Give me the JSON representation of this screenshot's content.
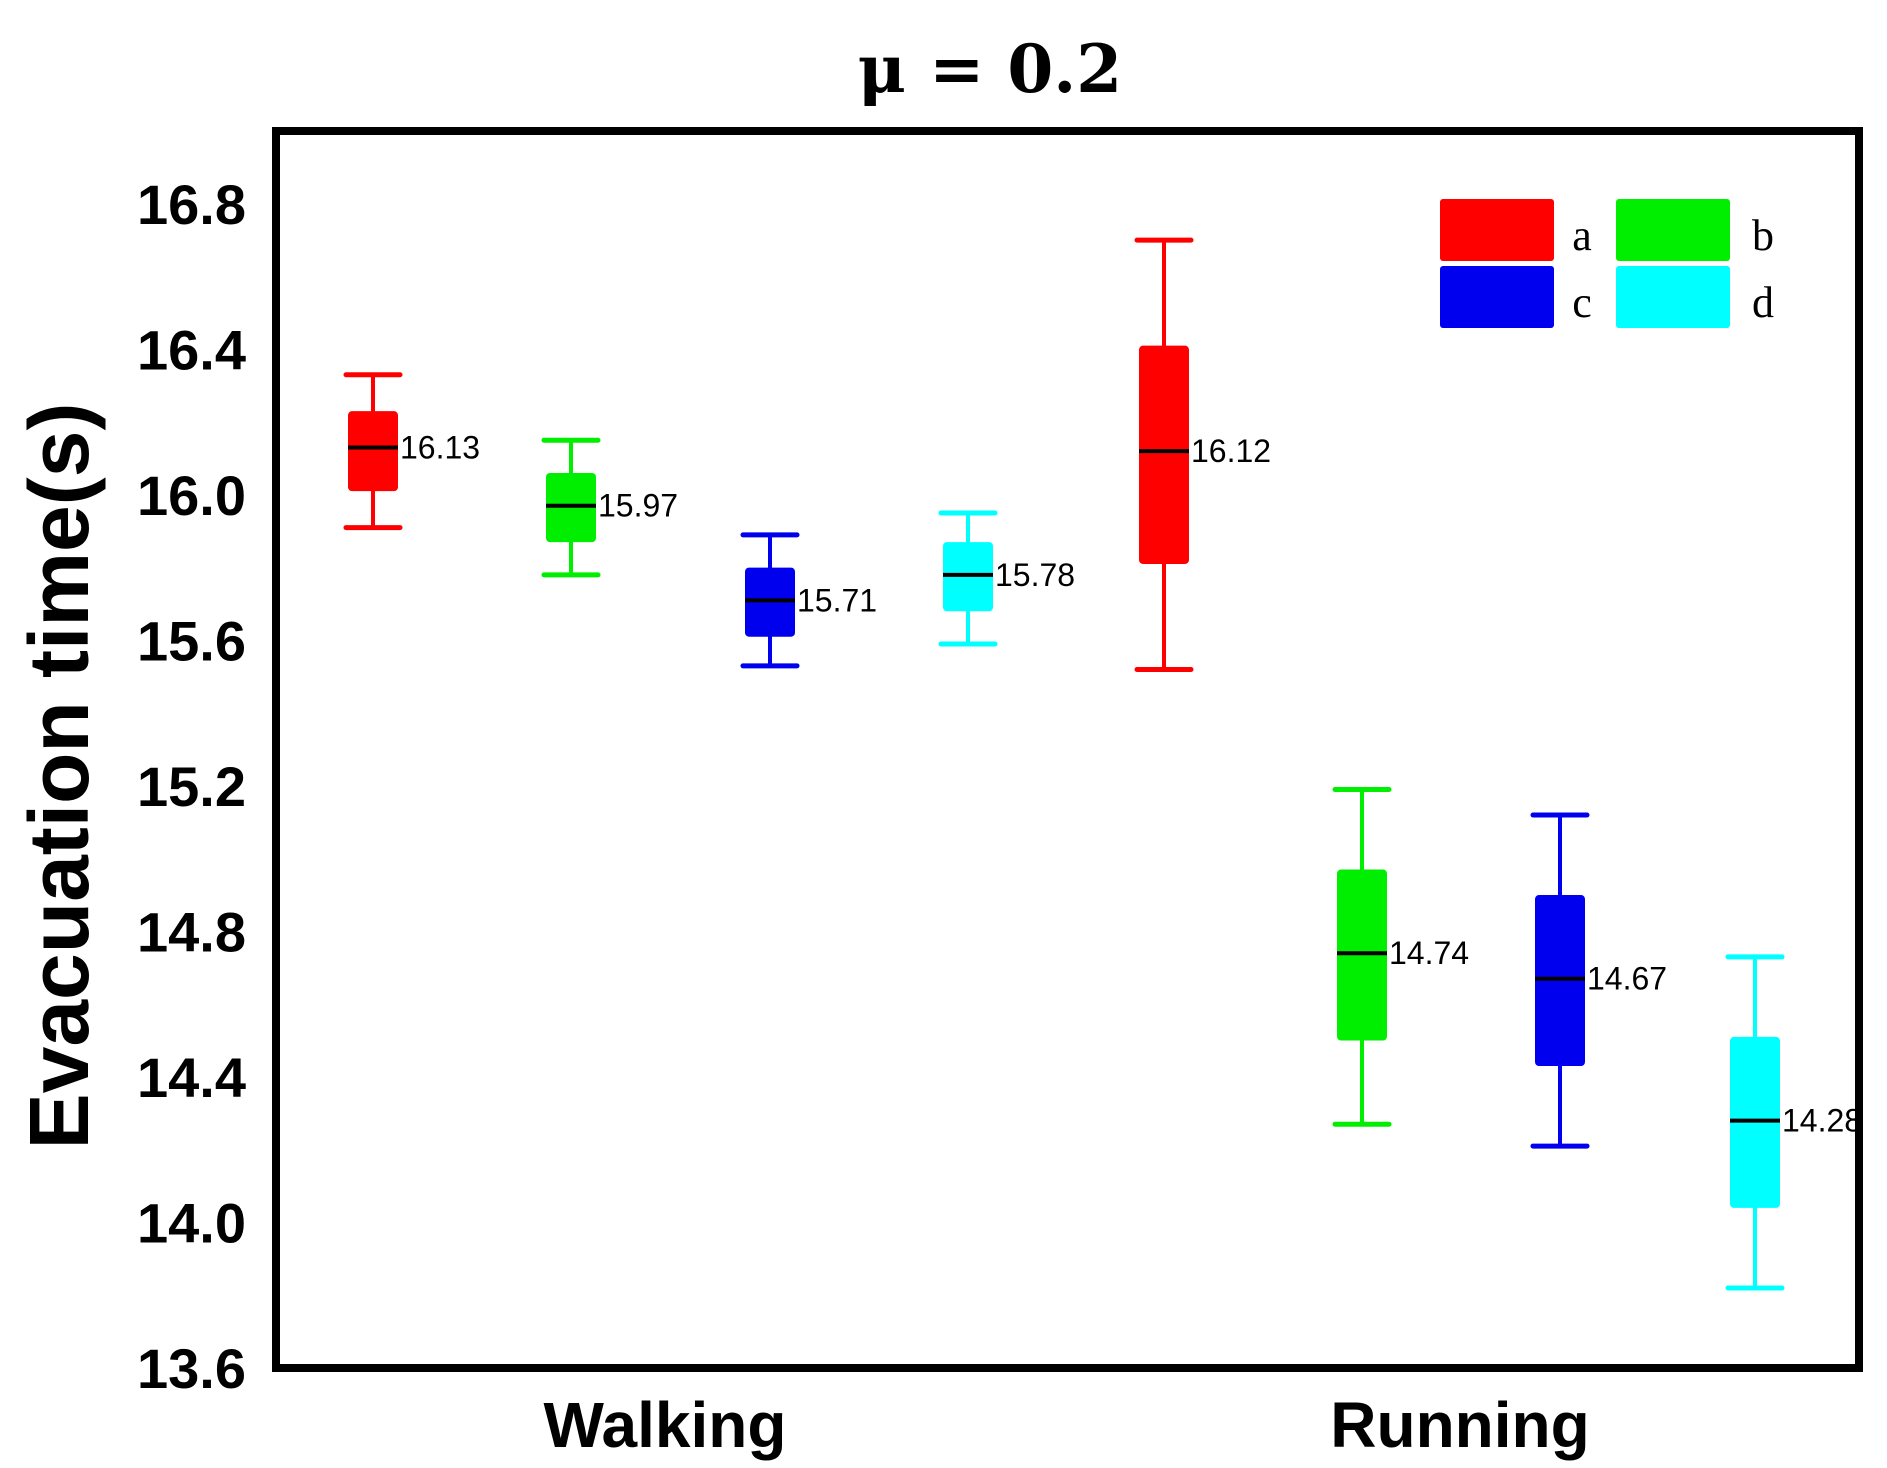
{
  "chart_data": {
    "type": "box",
    "title": "μ = 0.2",
    "xlabel": "",
    "ylabel": "Evacuation time(s)",
    "ylim": [
      13.6,
      17.0
    ],
    "yticks": [
      "13.6",
      "14.0",
      "14.4",
      "14.8",
      "15.2",
      "15.6",
      "16.0",
      "16.4",
      "16.8"
    ],
    "categories": [
      "Walking",
      "Running"
    ],
    "series": [
      {
        "name": "a",
        "color": "#ff0000",
        "boxes": [
          {
            "category": "Walking",
            "whisker_low": 15.91,
            "q1": 16.01,
            "median": 16.13,
            "q3": 16.23,
            "whisker_high": 16.33,
            "label": "16.13"
          },
          {
            "category": "Running",
            "whisker_low": 15.52,
            "q1": 15.81,
            "median": 16.12,
            "q3": 16.41,
            "whisker_high": 16.7,
            "label": "16.12"
          }
        ]
      },
      {
        "name": "b",
        "color": "#00ee00",
        "boxes": [
          {
            "category": "Walking",
            "whisker_low": 15.78,
            "q1": 15.87,
            "median": 15.97,
            "q3": 16.06,
            "whisker_high": 16.15,
            "label": "15.97"
          },
          {
            "category": "Running",
            "whisker_low": 14.27,
            "q1": 14.5,
            "median": 14.74,
            "q3": 14.97,
            "whisker_high": 15.19,
            "label": "14.74"
          }
        ]
      },
      {
        "name": "c",
        "color": "#0000ee",
        "boxes": [
          {
            "category": "Walking",
            "whisker_low": 15.53,
            "q1": 15.61,
            "median": 15.71,
            "q3": 15.8,
            "whisker_high": 15.89,
            "label": "15.71"
          },
          {
            "category": "Running",
            "whisker_low": 14.21,
            "q1": 14.43,
            "median": 14.67,
            "q3": 14.9,
            "whisker_high": 15.12,
            "label": "14.67"
          }
        ]
      },
      {
        "name": "d",
        "color": "#00ffff",
        "boxes": [
          {
            "category": "Walking",
            "whisker_low": 15.59,
            "q1": 15.68,
            "median": 15.78,
            "q3": 15.87,
            "whisker_high": 15.95,
            "label": "15.78"
          },
          {
            "category": "Running",
            "whisker_low": 13.82,
            "q1": 14.04,
            "median": 14.28,
            "q3": 14.51,
            "whisker_high": 14.73,
            "label": "14.28"
          }
        ]
      }
    ],
    "legend_position": "top-right"
  }
}
